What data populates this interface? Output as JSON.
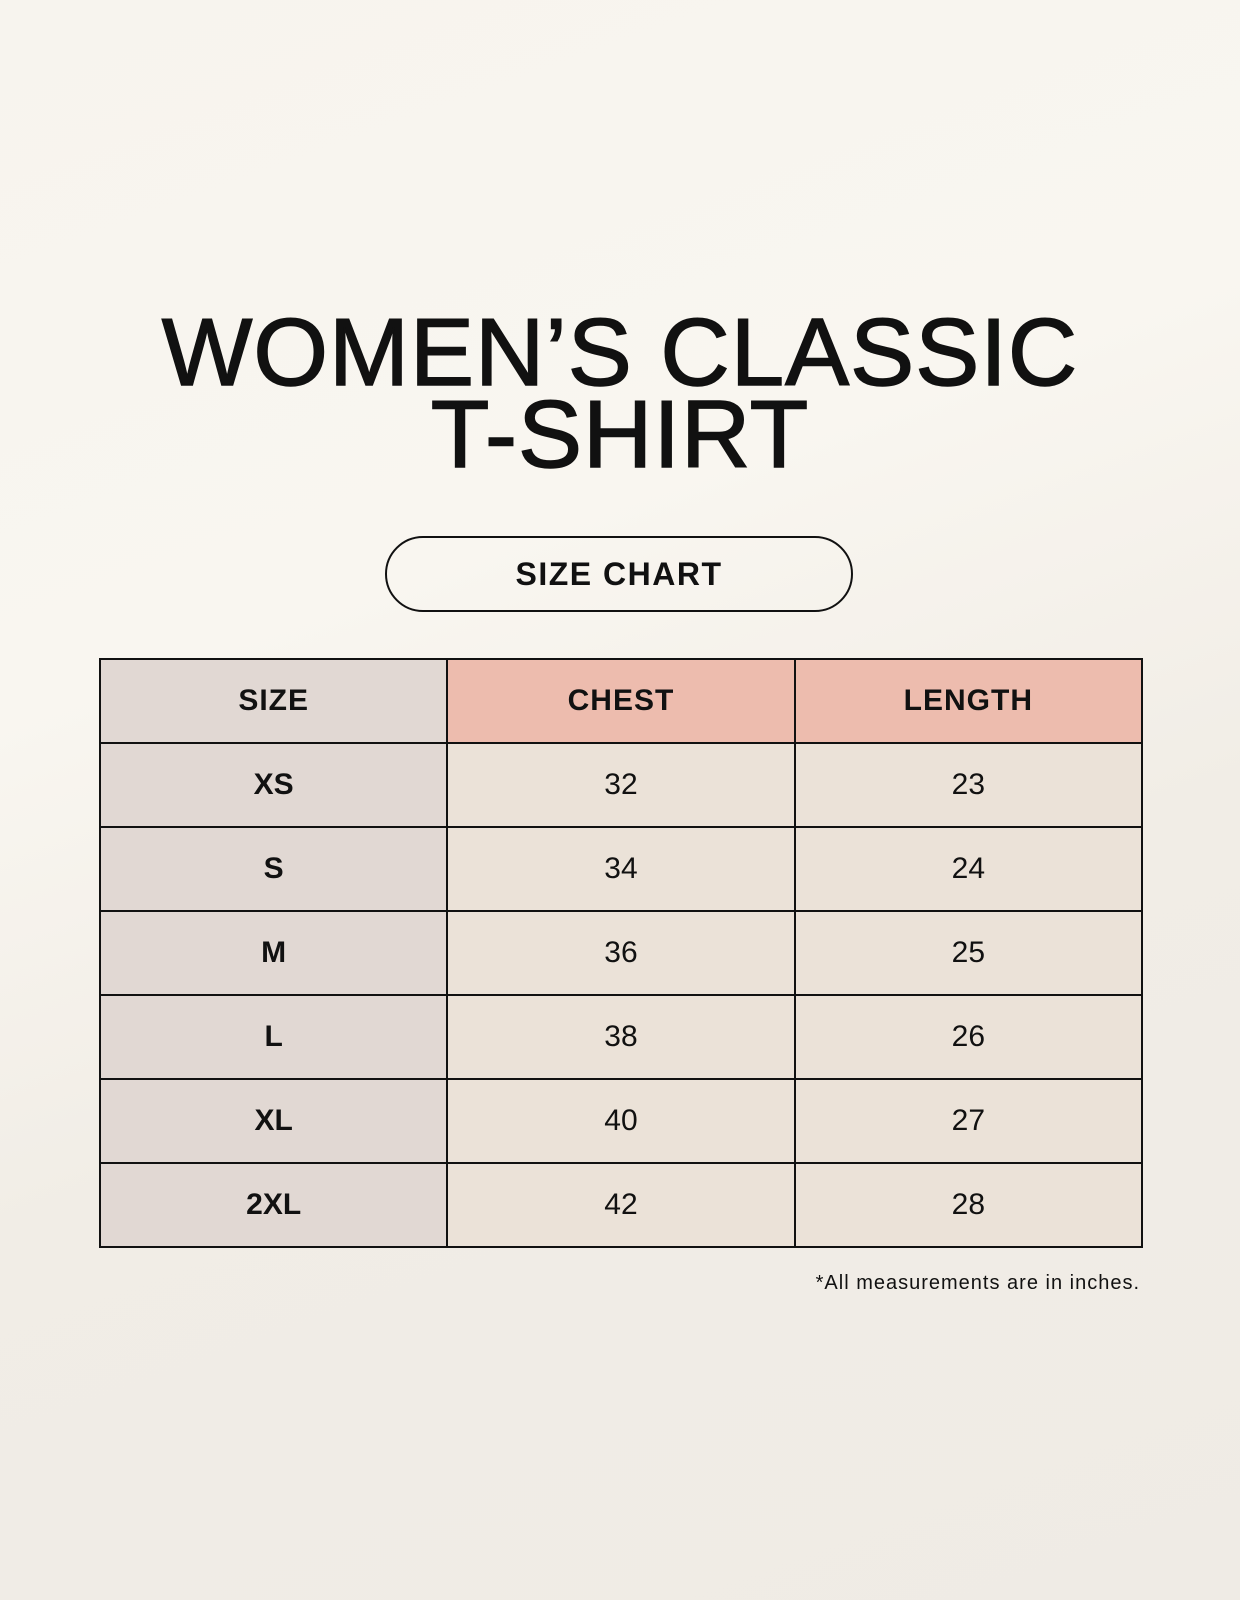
{
  "title_lines": [
    "WOMEN’S CLASSIC",
    "T-SHIRT"
  ],
  "subtitle": "SIZE CHART",
  "table": {
    "headers": [
      "SIZE",
      "CHEST",
      "LENGTH"
    ],
    "rows": [
      [
        "XS",
        "32",
        "23"
      ],
      [
        "S",
        "34",
        "24"
      ],
      [
        "M",
        "36",
        "25"
      ],
      [
        "L",
        "38",
        "26"
      ],
      [
        "XL",
        "40",
        "27"
      ],
      [
        "2XL",
        "42",
        "28"
      ]
    ]
  },
  "footnote": "*All measurements are in inches.",
  "colors": {
    "size_column": "#e1d8d3",
    "header_accent": "#edbcae",
    "value_cells": "#ebe2d8"
  }
}
